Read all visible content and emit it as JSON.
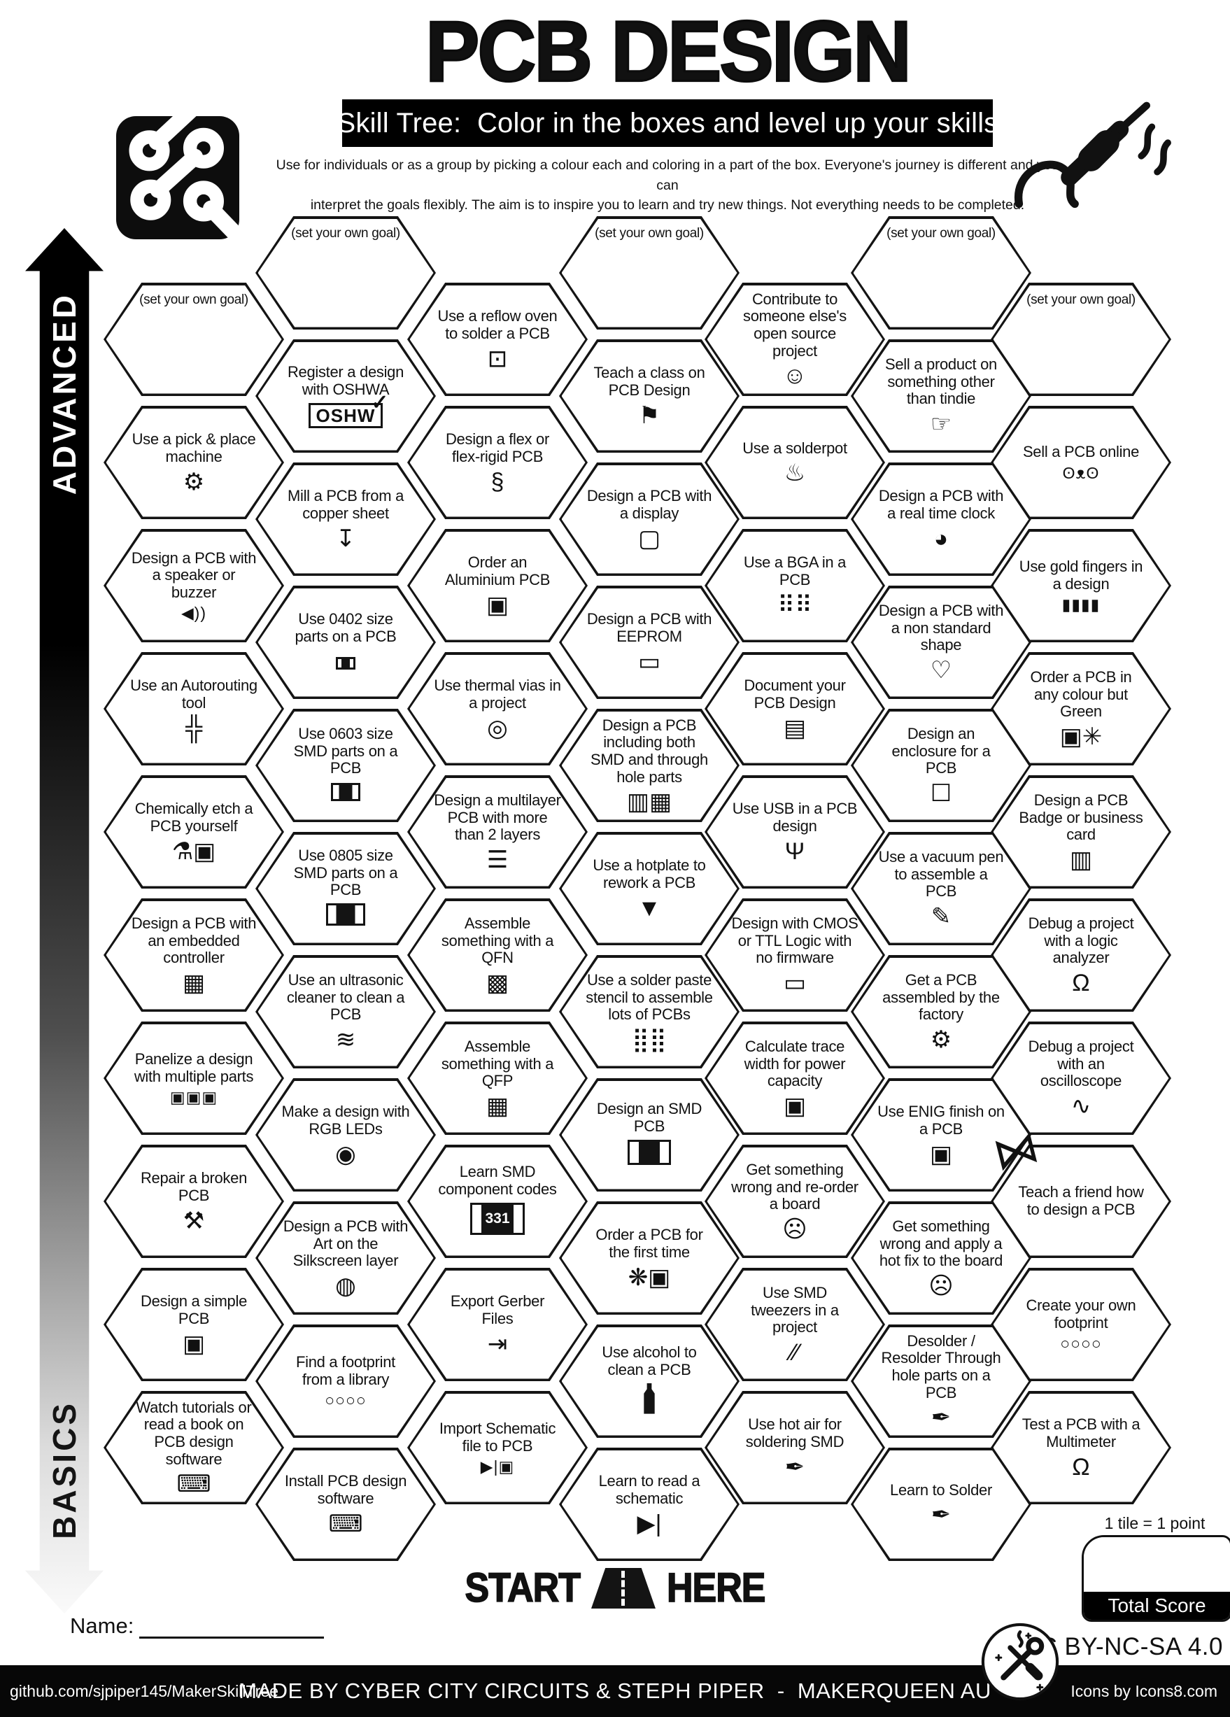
{
  "header": {
    "title": "PCB DESIGN",
    "subtitle": "Skill Tree:  Color in the boxes and level up your skills",
    "desc1": "Use for individuals or as a group by picking a colour each and coloring in a part of the box.  Everyone's journey is different and you can",
    "desc2": "interpret the goals flexibly.  The aim is to inspire you to learn and try new things. Not everything needs to be completed.",
    "logo_icon": "pcb-circuit-logo",
    "decoration_icon": "soldering-iron-sketch"
  },
  "axis": {
    "top_label": "ADVANCED",
    "bottom_label": "BASICS"
  },
  "icons": {
    "oshwa_text": "OSHW",
    "oshwa_check": "✓",
    "smd_code_text": "331"
  },
  "hexes": [
    {
      "col": 0,
      "row": 0,
      "label": "(set your own goal)",
      "icon": "",
      "goal": true
    },
    {
      "col": 0,
      "row": 1,
      "label": "Use a pick & place machine",
      "icon": "robot-arm-icon"
    },
    {
      "col": 0,
      "row": 2,
      "label": "Design a PCB with a speaker or buzzer",
      "icon": "speaker-icon"
    },
    {
      "col": 0,
      "row": 3,
      "label": "Use an Autorouting tool",
      "icon": "autorouting-icon"
    },
    {
      "col": 0,
      "row": 4,
      "label": "Chemically etch a PCB yourself",
      "icon": "flask-pcb-icon"
    },
    {
      "col": 0,
      "row": 5,
      "label": "Design a PCB with an embedded controller",
      "icon": "chip-icon"
    },
    {
      "col": 0,
      "row": 6,
      "label": "Panelize a design with multiple parts",
      "icon": "panel-icon"
    },
    {
      "col": 0,
      "row": 7,
      "label": "Repair a broken PCB",
      "icon": "tools-icon"
    },
    {
      "col": 0,
      "row": 8,
      "label": "Design a simple PCB",
      "icon": "pcb-icon"
    },
    {
      "col": 0,
      "row": 9,
      "label": "Watch tutorials or read a book on PCB design software",
      "icon": "laptop-gear-icon"
    },
    {
      "col": 1,
      "row": 0,
      "label": "(set your own goal)",
      "icon": "",
      "goal": true
    },
    {
      "col": 1,
      "row": 1,
      "label": "Register a design with OSHWA",
      "icon": "oshwa-mark-icon"
    },
    {
      "col": 1,
      "row": 2,
      "label": "Mill a PCB from a copper sheet",
      "icon": "mill-icon"
    },
    {
      "col": 1,
      "row": 3,
      "label": "Use 0402 size parts on a PCB",
      "icon": "smd-0402-icon"
    },
    {
      "col": 1,
      "row": 4,
      "label": "Use 0603 size SMD parts on a PCB",
      "icon": "smd-0603-icon"
    },
    {
      "col": 1,
      "row": 5,
      "label": "Use 0805 size SMD parts on a PCB",
      "icon": "smd-0805-icon"
    },
    {
      "col": 1,
      "row": 6,
      "label": "Use an ultrasonic cleaner to clean a PCB",
      "icon": "ultrasonic-icon"
    },
    {
      "col": 1,
      "row": 7,
      "label": "Make a design with RGB LEDs",
      "icon": "led-icon"
    },
    {
      "col": 1,
      "row": 8,
      "label": "Design a PCB with Art on the Silkscreen layer",
      "icon": "palette-icon"
    },
    {
      "col": 1,
      "row": 9,
      "label": "Find a footprint from a library",
      "icon": "footprint-icon"
    },
    {
      "col": 1,
      "row": 10,
      "label": "Install PCB design software",
      "icon": "laptop-gear-icon"
    },
    {
      "col": 2,
      "row": 0,
      "label": "Use a reflow oven to solder a PCB",
      "icon": "oven-icon"
    },
    {
      "col": 2,
      "row": 1,
      "label": "Design a flex or flex-rigid PCB",
      "icon": "flex-pcb-icon"
    },
    {
      "col": 2,
      "row": 2,
      "label": "Order an Aluminium PCB",
      "icon": "pcb-icon"
    },
    {
      "col": 2,
      "row": 3,
      "label": "Use thermal vias in a project",
      "icon": "via-icon"
    },
    {
      "col": 2,
      "row": 4,
      "label": "Design a multilayer PCB with more than 2 layers",
      "icon": "layers-icon"
    },
    {
      "col": 2,
      "row": 5,
      "label": "Assemble something with a QFN",
      "icon": "qfn-icon"
    },
    {
      "col": 2,
      "row": 6,
      "label": "Assemble something with a QFP",
      "icon": "qfp-icon"
    },
    {
      "col": 2,
      "row": 7,
      "label": "Learn SMD component codes",
      "icon": "smd-code-icon"
    },
    {
      "col": 2,
      "row": 8,
      "label": "Export Gerber Files",
      "icon": "export-icon"
    },
    {
      "col": 2,
      "row": 9,
      "label": "Import Schematic file to PCB",
      "icon": "import-icon"
    },
    {
      "col": 3,
      "row": 0,
      "label": "(set your own goal)",
      "icon": "",
      "goal": true
    },
    {
      "col": 3,
      "row": 1,
      "label": "Teach a class on PCB Design",
      "icon": "teacher-icon"
    },
    {
      "col": 3,
      "row": 2,
      "label": "Design a PCB with a display",
      "icon": "display-icon"
    },
    {
      "col": 3,
      "row": 3,
      "label": "Design a PCB with EEPROM",
      "icon": "eeprom-icon"
    },
    {
      "col": 3,
      "row": 4,
      "label": "Design a PCB including both SMD and through hole parts",
      "icon": "mixed-parts-icon"
    },
    {
      "col": 3,
      "row": 5,
      "label": "Use a hotplate to rework a PCB",
      "icon": "hotplate-icon"
    },
    {
      "col": 3,
      "row": 6,
      "label": "Use a solder paste stencil to assemble lots of PCBs",
      "icon": "stencil-icon"
    },
    {
      "col": 3,
      "row": 7,
      "label": "Design an SMD PCB",
      "icon": "smd-pcb-icon"
    },
    {
      "col": 3,
      "row": 8,
      "label": "Order a PCB for the first time",
      "icon": "party-pcb-icon"
    },
    {
      "col": 3,
      "row": 9,
      "label": "Use alcohol to clean a PCB",
      "icon": "bottle-icon"
    },
    {
      "col": 3,
      "row": 10,
      "label": "Learn to read a schematic",
      "icon": "diode-icon"
    },
    {
      "col": 4,
      "row": 0,
      "label": "Contribute to someone else's open source project",
      "icon": "person-laptop-icon"
    },
    {
      "col": 4,
      "row": 1,
      "label": "Use a solderpot",
      "icon": "pot-icon"
    },
    {
      "col": 4,
      "row": 2,
      "label": "Use a BGA in a PCB",
      "icon": "bga-icon"
    },
    {
      "col": 4,
      "row": 3,
      "label": "Document your PCB Design",
      "icon": "doc-icon"
    },
    {
      "col": 4,
      "row": 4,
      "label": "Use USB in a PCB design",
      "icon": "usb-icon"
    },
    {
      "col": 4,
      "row": 5,
      "label": "Design with CMOS or TTL Logic with no firmware",
      "icon": "cmos-icon"
    },
    {
      "col": 4,
      "row": 6,
      "label": "Calculate trace width for power capacity",
      "icon": "pcb-icon"
    },
    {
      "col": 4,
      "row": 7,
      "label": "Get something wrong and re-order a board",
      "icon": "facepalm-icon"
    },
    {
      "col": 4,
      "row": 8,
      "label": "Use SMD tweezers in a project",
      "icon": "tweezers-icon"
    },
    {
      "col": 4,
      "row": 9,
      "label": "Use hot air for soldering SMD",
      "icon": "hot-air-icon"
    },
    {
      "col": 5,
      "row": 0,
      "label": "(set your own goal)",
      "icon": "",
      "goal": true
    },
    {
      "col": 5,
      "row": 1,
      "label": "Sell a product on something other than tindie",
      "icon": "hand-box-icon"
    },
    {
      "col": 5,
      "row": 2,
      "label": "Design a PCB with a real time clock",
      "icon": "clock-icon"
    },
    {
      "col": 5,
      "row": 3,
      "label": "Design a PCB with a non standard shape",
      "icon": "heart-icon"
    },
    {
      "col": 5,
      "row": 4,
      "label": "Design an enclosure for a PCB",
      "icon": "enclosure-icon"
    },
    {
      "col": 5,
      "row": 5,
      "label": "Use a vacuum pen to assemble a PCB",
      "icon": "vacuum-pen-icon"
    },
    {
      "col": 5,
      "row": 6,
      "label": "Get a PCB assembled by the factory",
      "icon": "robot-arm-icon"
    },
    {
      "col": 5,
      "row": 7,
      "label": "Use ENIG finish on a PCB",
      "icon": "pcb-icon"
    },
    {
      "col": 5,
      "row": 8,
      "label": "Get something wrong and apply a hot fix to the board",
      "icon": "facepalm-icon"
    },
    {
      "col": 5,
      "row": 9,
      "label": "Desolder / Resolder Through hole parts on a PCB",
      "icon": "soldering-iron-icon"
    },
    {
      "col": 5,
      "row": 10,
      "label": "Learn to Solder",
      "icon": "soldering-iron-icon"
    },
    {
      "col": 6,
      "row": 0,
      "label": "(set your own goal)",
      "icon": "",
      "goal": true
    },
    {
      "col": 6,
      "row": 1,
      "label": "Sell a PCB online",
      "icon": "dog-icon"
    },
    {
      "col": 6,
      "row": 2,
      "label": "Use gold fingers in a design",
      "icon": "gold-fingers-icon"
    },
    {
      "col": 6,
      "row": 3,
      "label": "Order a PCB in any colour but Green",
      "icon": "pcb-sparkle-icon"
    },
    {
      "col": 6,
      "row": 4,
      "label": "Design a PCB Badge or business card",
      "icon": "id-card-icon"
    },
    {
      "col": 6,
      "row": 5,
      "label": "Debug a project with a logic analyzer",
      "icon": "multimeter-icon"
    },
    {
      "col": 6,
      "row": 6,
      "label": "Debug a project with an oscilloscope",
      "icon": "oscilloscope-icon"
    },
    {
      "col": 6,
      "row": 7,
      "label": "Teach a friend how to design a PCB",
      "icon": ""
    },
    {
      "col": 6,
      "row": 8,
      "label": "Create your own footprint",
      "icon": "footprint-icon"
    },
    {
      "col": 6,
      "row": 9,
      "label": "Test a PCB with a Multimeter",
      "icon": "multimeter-icon"
    }
  ],
  "start": {
    "left_word": "START",
    "right_word": "HERE",
    "icon": "road-icon"
  },
  "name_field": {
    "label": "Name:"
  },
  "score": {
    "note": "1 tile = 1 point",
    "box_label": "Total Score"
  },
  "license": {
    "text": "CC BY-NC-SA 4.0",
    "badge_icon": "maker-tools-badge"
  },
  "footer": {
    "left": "github.com/sjpiper145/MakerSkillTree",
    "center": "MADE BY CYBER CITY CIRCUITS & STEPH PIPER  -  MAKERQUEEN AU",
    "right": "Icons by Icons8.com"
  }
}
